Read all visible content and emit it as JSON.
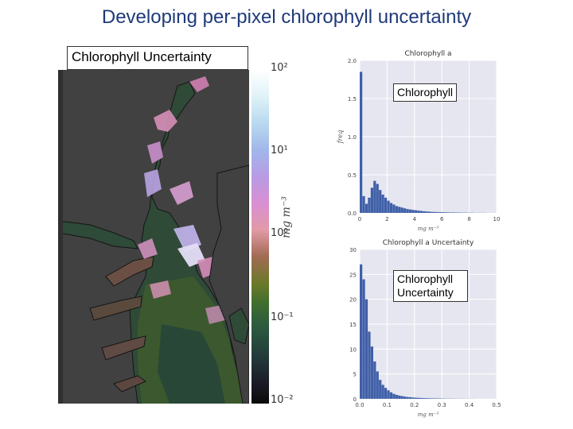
{
  "slide_title": "Developing per-pixel chlorophyll uncertainty",
  "map_label": "Chlorophyll Uncertainty",
  "colorbar": {
    "ticks": [
      "10²",
      "10¹",
      "10⁰",
      "10⁻¹",
      "10⁻²"
    ],
    "units": "mg m⁻³",
    "scale": "log"
  },
  "colors": {
    "title": "#1f3a7a",
    "land": "#414141",
    "bar": "#4060a8",
    "plot_bg": "#e6e6f0"
  },
  "chart_data": [
    {
      "type": "bar",
      "title": "Chlorophyll a",
      "box_label": "Chlorophyll",
      "xlabel": "mg m⁻³",
      "ylabel": "freq",
      "xlim": [
        0,
        10
      ],
      "ylim": [
        0,
        2.0
      ],
      "xticks": [
        "0",
        "2",
        "4",
        "6",
        "8",
        "10"
      ],
      "yticks": [
        "0.0",
        "0.5",
        "1.0",
        "1.5",
        "2.0"
      ],
      "bin_width": 0.2,
      "values": [
        1.85,
        0.22,
        0.12,
        0.2,
        0.33,
        0.42,
        0.38,
        0.3,
        0.24,
        0.2,
        0.16,
        0.13,
        0.11,
        0.09,
        0.08,
        0.07,
        0.06,
        0.05,
        0.045,
        0.04,
        0.035,
        0.03,
        0.026,
        0.022,
        0.019,
        0.016,
        0.014,
        0.012,
        0.011,
        0.01,
        0.009,
        0.008,
        0.007,
        0.006,
        0.006,
        0.005,
        0.005,
        0.004,
        0.004,
        0.003,
        0.003,
        0.003,
        0.002,
        0.002,
        0.002,
        0.002,
        0.001,
        0.001,
        0.001,
        0.001
      ]
    },
    {
      "type": "bar",
      "title": "Chlorophyll a Uncertainty",
      "box_label": "Chlorophyll Uncertainty",
      "xlabel": "mg m⁻³",
      "ylabel": "",
      "xlim": [
        0,
        0.5
      ],
      "ylim": [
        0,
        30
      ],
      "xticks": [
        "0.0",
        "0.1",
        "0.2",
        "0.3",
        "0.4",
        "0.5"
      ],
      "yticks": [
        "0",
        "5",
        "10",
        "15",
        "20",
        "25",
        "30"
      ],
      "bin_width": 0.01,
      "values": [
        27,
        24,
        20,
        13.5,
        10.5,
        7.5,
        5.5,
        3.8,
        2.8,
        2.2,
        1.7,
        1.3,
        1.0,
        0.8,
        0.65,
        0.55,
        0.45,
        0.38,
        0.32,
        0.27,
        0.23,
        0.2,
        0.17,
        0.15,
        0.13,
        0.11,
        0.1,
        0.09,
        0.08,
        0.07,
        0.06,
        0.05,
        0.05,
        0.04,
        0.04,
        0.03,
        0.03,
        0.03,
        0.02,
        0.02,
        0.02,
        0.02,
        0.01,
        0.01,
        0.01,
        0.01,
        0.01,
        0.01,
        0.01,
        0.01
      ]
    }
  ]
}
